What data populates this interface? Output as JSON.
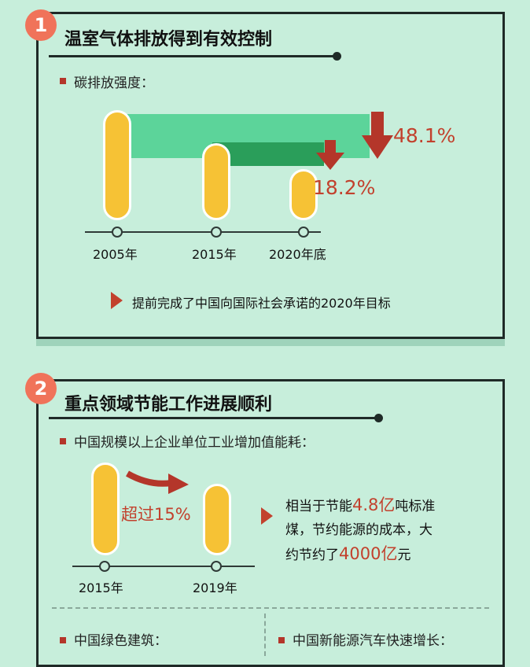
{
  "section1": {
    "number": "1",
    "title": "温室气体排放得到有效控制",
    "subtitle": "碳排放强度：",
    "years": [
      "2005年",
      "2015年",
      "2020年底"
    ],
    "pct_big": "48.1%",
    "pct_small": "18.2%",
    "note": "提前完成了中国向国际社会承诺的2020年目标"
  },
  "section2": {
    "number": "2",
    "title": "重点领域节能工作进展顺利",
    "subtitle": "中国规模以上企业单位工业增加值能耗：",
    "years": [
      "2015年",
      "2019年"
    ],
    "arrow_label": "超过15%",
    "text_line1_a": "相当于节能",
    "text_line1_hl": "4.8亿",
    "text_line1_b": "吨标准",
    "text_line2": "煤，节约能源的成本，大",
    "text_line3_a": "约节约了",
    "text_line3_hl": "4000亿",
    "text_line3_b": "元",
    "bottom_left": "中国绿色建筑：",
    "bottom_right": "中国新能源汽车快速增长："
  },
  "colors": {
    "background": "#c7eedb",
    "bar_yellow": "#f6c235",
    "accent_red": "#c2412d",
    "badge_coral": "#f0735a",
    "band_light_green": "#5cd49a",
    "band_dark_green": "#2a9e5a"
  },
  "icons": [
    "down-arrow-icon",
    "triangle-bullet-icon",
    "curved-arrow-icon"
  ]
}
